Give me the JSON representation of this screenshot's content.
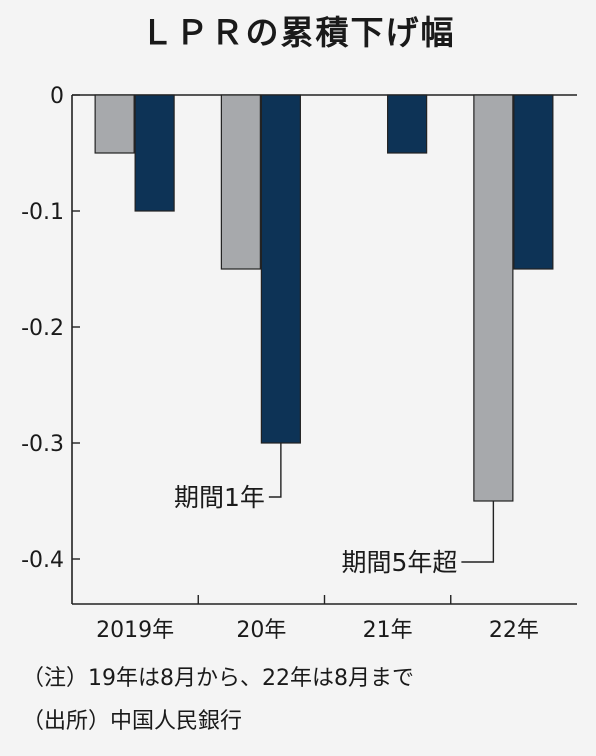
{
  "chart_data": {
    "type": "bar",
    "title": "ＬＰＲの累積下げ幅",
    "categories": [
      "2019年",
      "20年",
      "21年",
      "22年"
    ],
    "series": [
      {
        "name": "期間5年超",
        "values": [
          -0.05,
          -0.15,
          0,
          -0.35
        ],
        "color": "#a7a9ac"
      },
      {
        "name": "期間1年",
        "values": [
          -0.1,
          -0.3,
          -0.05,
          -0.15
        ],
        "color": "#0d3356"
      }
    ],
    "ylim": [
      -0.44,
      0
    ],
    "yticks": [
      0,
      -0.1,
      -0.2,
      -0.3,
      -0.4
    ],
    "ytick_labels": [
      "0",
      "-0.1",
      "-0.2",
      "-0.3",
      "-0.4"
    ],
    "xlabel": "",
    "ylabel": "",
    "grid": false,
    "legend": "callout labels"
  },
  "notes": {
    "note": "（注）19年は8月から、22年は8月まで",
    "source": "（出所）中国人民銀行"
  }
}
